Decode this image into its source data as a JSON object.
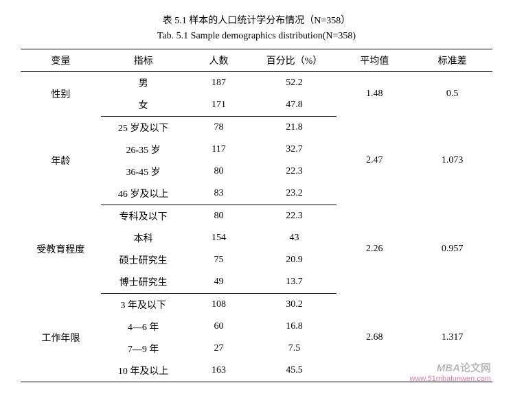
{
  "caption": {
    "zh": "表 5.1 样本的人口统计学分布情况（N=358）",
    "en": "Tab. 5.1 Sample demographics distribution(N=358)"
  },
  "headers": {
    "variable": "变量",
    "indicator": "指标",
    "count": "人数",
    "percent": "百分比（%）",
    "mean": "平均值",
    "sd": "标准差"
  },
  "groups": [
    {
      "variable": "性别",
      "mean": "1.48",
      "sd": "0.5",
      "rows": [
        {
          "indicator": "男",
          "count": "187",
          "percent": "52.2"
        },
        {
          "indicator": "女",
          "count": "171",
          "percent": "47.8"
        }
      ]
    },
    {
      "variable": "年龄",
      "mean": "2.47",
      "sd": "1.073",
      "rows": [
        {
          "indicator": "25 岁及以下",
          "count": "78",
          "percent": "21.8"
        },
        {
          "indicator": "26-35 岁",
          "count": "117",
          "percent": "32.7"
        },
        {
          "indicator": "36-45 岁",
          "count": "80",
          "percent": "22.3"
        },
        {
          "indicator": "46 岁及以上",
          "count": "83",
          "percent": "23.2"
        }
      ]
    },
    {
      "variable": "受教育程度",
      "mean": "2.26",
      "sd": "0.957",
      "rows": [
        {
          "indicator": "专科及以下",
          "count": "80",
          "percent": "22.3"
        },
        {
          "indicator": "本科",
          "count": "154",
          "percent": "43"
        },
        {
          "indicator": "硕士研究生",
          "count": "75",
          "percent": "20.9"
        },
        {
          "indicator": "博士研究生",
          "count": "49",
          "percent": "13.7"
        }
      ]
    },
    {
      "variable": "工作年限",
      "mean": "2.68",
      "sd": "1.317",
      "rows": [
        {
          "indicator": "3 年及以下",
          "count": "108",
          "percent": "30.2"
        },
        {
          "indicator": "4—6 年",
          "count": "60",
          "percent": "16.8"
        },
        {
          "indicator": "7—9 年",
          "count": "27",
          "percent": "7.5"
        },
        {
          "indicator": "10 年及以上",
          "count": "163",
          "percent": "45.5"
        }
      ]
    }
  ],
  "watermark": {
    "line1a": "MBA",
    "line1b": "论文网",
    "line2": "www.51mbalunwen.com"
  }
}
